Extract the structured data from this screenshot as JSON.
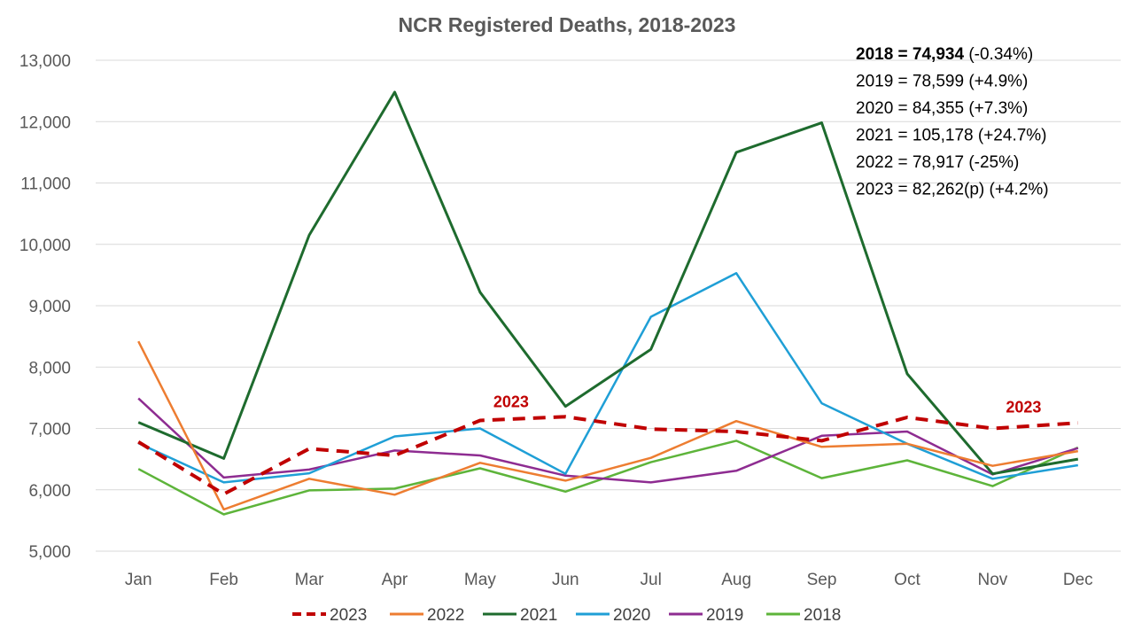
{
  "chart_data": {
    "type": "line",
    "title": "NCR Registered Deaths, 2018-2023",
    "xlabel": "",
    "ylabel": "",
    "ylim": [
      5000,
      13000
    ],
    "ytick_step": 1000,
    "ytick_labels": [
      "5,000",
      "6,000",
      "7,000",
      "8,000",
      "9,000",
      "10,000",
      "11,000",
      "12,000",
      "13,000"
    ],
    "categories": [
      "Jan",
      "Feb",
      "Mar",
      "Apr",
      "May",
      "Jun",
      "Jul",
      "Aug",
      "Sep",
      "Oct",
      "Nov",
      "Dec"
    ],
    "grid": "horizontal",
    "legend_position": "bottom",
    "series": [
      {
        "name": "2023",
        "color": "#C00000",
        "dashed": true,
        "width": 4,
        "values": [
          6780,
          5930,
          6670,
          6560,
          7130,
          7190,
          6990,
          6950,
          6800,
          7180,
          7000,
          7090
        ]
      },
      {
        "name": "2022",
        "color": "#ED7D31",
        "dashed": false,
        "width": 2.5,
        "values": [
          8420,
          5680,
          6180,
          5920,
          6440,
          6150,
          6520,
          7120,
          6700,
          6750,
          6390,
          6630
        ]
      },
      {
        "name": "2021",
        "color": "#1E6B2E",
        "dashed": false,
        "width": 3,
        "values": [
          7100,
          6510,
          10150,
          12480,
          9220,
          7360,
          8290,
          11500,
          11980,
          7890,
          6260,
          6500
        ]
      },
      {
        "name": "2020",
        "color": "#1F9FD6",
        "dashed": false,
        "width": 2.5,
        "values": [
          6760,
          6120,
          6270,
          6870,
          7000,
          6260,
          8820,
          9530,
          7410,
          6750,
          6180,
          6400
        ]
      },
      {
        "name": "2019",
        "color": "#8E2C91",
        "dashed": false,
        "width": 2.5,
        "values": [
          7490,
          6200,
          6330,
          6640,
          6560,
          6230,
          6120,
          6310,
          6880,
          6950,
          6250,
          6680
        ]
      },
      {
        "name": "2018",
        "color": "#5DB43A",
        "dashed": false,
        "width": 2.5,
        "values": [
          6340,
          5600,
          5990,
          6020,
          6350,
          5970,
          6450,
          6800,
          6190,
          6480,
          6060,
          6690
        ]
      }
    ],
    "series_labels": [
      {
        "text": "2023",
        "x": "May",
        "y": 7350
      },
      {
        "text": "2023",
        "x": "Nov",
        "y": 7260
      }
    ],
    "annotations": [
      {
        "year": "2018",
        "equals": " = ",
        "total": "74,934",
        "change": " (-0.34%)",
        "bold": true
      },
      {
        "year": "2019",
        "equals": " = ",
        "total": "78,599",
        "change": " (+4.9%)",
        "bold": false
      },
      {
        "year": "2020",
        "equals": " = ",
        "total": "84,355",
        "change": " (+7.3%)",
        "bold": false
      },
      {
        "year": "2021",
        "equals": " = ",
        "total": "105,178",
        "change": " (+24.7%)",
        "bold": false
      },
      {
        "year": "2022",
        "equals": " = ",
        "total": "78,917",
        "change": " (-25%)",
        "bold": false
      },
      {
        "year": "2023",
        "equals": " = ",
        "total": "82,262(p)",
        "change": " (+4.2%)",
        "bold": false
      }
    ]
  }
}
